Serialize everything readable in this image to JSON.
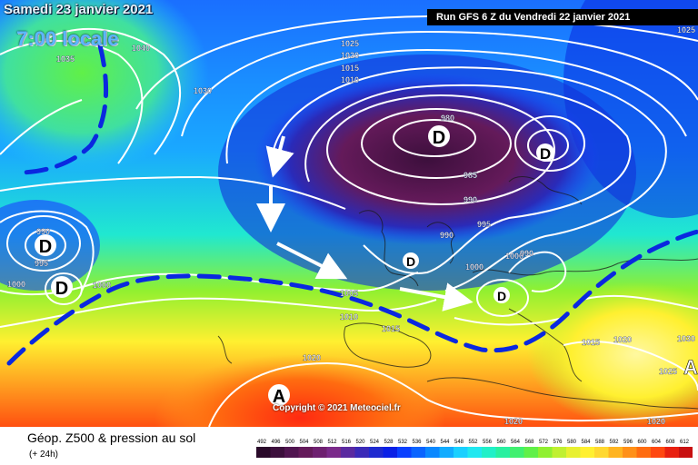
{
  "header": {
    "date_label": "Samedi 23 janvier 2021",
    "time_label": "7:00 locale",
    "run_label": "Run GFS 6 Z du Vendredi 22 janvier 2021"
  },
  "footer": {
    "title": "Géop. Z500 & pression au sol",
    "subtitle": "(+ 24h)",
    "copyright": "Copyright © 2021 Meteociel.fr"
  },
  "legend": {
    "values": [
      "492",
      "496",
      "500",
      "504",
      "508",
      "512",
      "516",
      "520",
      "524",
      "528",
      "532",
      "536",
      "540",
      "544",
      "548",
      "552",
      "556",
      "560",
      "564",
      "568",
      "572",
      "576",
      "580",
      "584",
      "588",
      "592",
      "596",
      "600",
      "604",
      "608",
      "612"
    ],
    "colors": [
      "#2a0a2a",
      "#3c0f3c",
      "#501550",
      "#641a5a",
      "#6e2070",
      "#7a2a8a",
      "#5a2aa0",
      "#3a2ab8",
      "#1e2ad0",
      "#0a20e6",
      "#0a40ff",
      "#0a64ff",
      "#0a88ff",
      "#12acff",
      "#1ad0ff",
      "#20e8f0",
      "#20f0c8",
      "#28f0a0",
      "#40f070",
      "#60f048",
      "#90f030",
      "#c0f030",
      "#e8f030",
      "#fff030",
      "#ffd830",
      "#ffb420",
      "#ff9018",
      "#ff6c10",
      "#ff4810",
      "#e82010",
      "#c81010"
    ]
  },
  "pressure_centers": [
    {
      "type": "low",
      "symbol": "D",
      "value": "980"
    },
    {
      "type": "low",
      "symbol": "D",
      "value": "980"
    },
    {
      "type": "low",
      "symbol": "D",
      "value": "990"
    },
    {
      "type": "low",
      "symbol": "D",
      "value": "995"
    },
    {
      "type": "low",
      "symbol": "D",
      "value": ""
    },
    {
      "type": "low",
      "symbol": "D",
      "value": "990"
    },
    {
      "type": "high",
      "symbol": "A",
      "value": ""
    },
    {
      "type": "high",
      "symbol": "A",
      "value": ""
    }
  ],
  "isobar_labels": [
    "1025",
    "1020",
    "1015",
    "1010",
    "1030",
    "1035",
    "1040",
    "980",
    "985",
    "990",
    "995",
    "990",
    "1000",
    "1005",
    "1010",
    "1015",
    "1000",
    "995",
    "990",
    "1000",
    "1000",
    "990",
    "1015",
    "1020",
    "1025",
    "1030",
    "1020",
    "1020",
    "1020",
    "1025"
  ]
}
